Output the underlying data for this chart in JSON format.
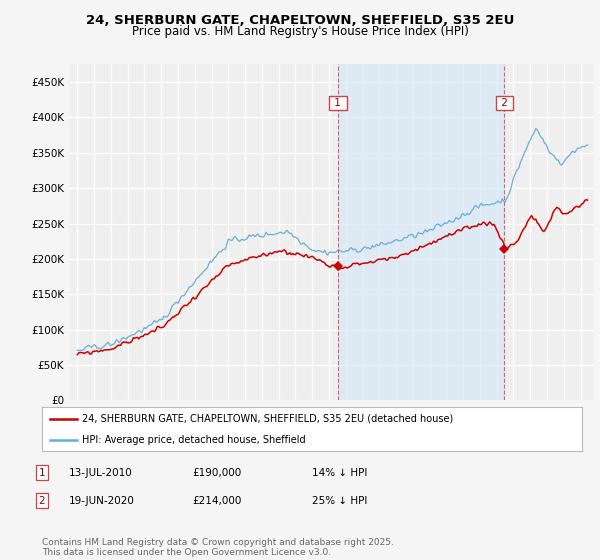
{
  "title_line1": "24, SHERBURN GATE, CHAPELTOWN, SHEFFIELD, S35 2EU",
  "title_line2": "Price paid vs. HM Land Registry's House Price Index (HPI)",
  "ylim": [
    0,
    475000
  ],
  "yticks": [
    0,
    50000,
    100000,
    150000,
    200000,
    250000,
    300000,
    350000,
    400000,
    450000
  ],
  "ytick_labels": [
    "£0",
    "£50K",
    "£100K",
    "£150K",
    "£200K",
    "£250K",
    "£300K",
    "£350K",
    "£400K",
    "£450K"
  ],
  "hpi_color": "#6baed6",
  "hpi_fill_color": "#d6e8f7",
  "sale_color": "#cc0000",
  "dashed_line_color": "#cc0000",
  "background_color": "#f5f5f5",
  "plot_bg_color": "#f0f0f0",
  "grid_color": "#ffffff",
  "legend_label_sale": "24, SHERBURN GATE, CHAPELTOWN, SHEFFIELD, S35 2EU (detached house)",
  "legend_label_hpi": "HPI: Average price, detached house, Sheffield",
  "sale1_date": "13-JUL-2010",
  "sale1_price": 190000,
  "sale1_note": "14% ↓ HPI",
  "sale1_year": 2010.53,
  "sale2_date": "19-JUN-2020",
  "sale2_price": 214000,
  "sale2_note": "25% ↓ HPI",
  "sale2_year": 2020.46,
  "copyright_text": "Contains HM Land Registry data © Crown copyright and database right 2025.\nThis data is licensed under the Open Government Licence v3.0.",
  "title_fontsize": 9.5,
  "subtitle_fontsize": 8.5,
  "tick_fontsize": 7.5,
  "legend_fontsize": 7.5,
  "footer_fontsize": 6.5
}
